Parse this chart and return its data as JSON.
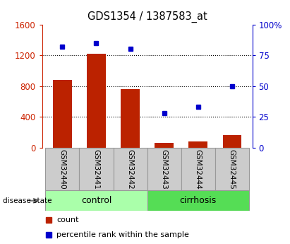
{
  "title": "GDS1354 / 1387583_at",
  "samples": [
    "GSM32440",
    "GSM32441",
    "GSM32442",
    "GSM32443",
    "GSM32444",
    "GSM32445"
  ],
  "counts": [
    880,
    1220,
    760,
    60,
    80,
    160
  ],
  "percentiles": [
    82,
    85,
    80,
    28,
    33,
    50
  ],
  "bar_color": "#bb2200",
  "dot_color": "#0000cc",
  "left_ylim": [
    0,
    1600
  ],
  "right_ylim": [
    0,
    100
  ],
  "left_yticks": [
    0,
    400,
    800,
    1200,
    1600
  ],
  "right_yticks": [
    0,
    25,
    50,
    75,
    100
  ],
  "left_yticklabels": [
    "0",
    "400",
    "800",
    "1200",
    "1600"
  ],
  "right_yticklabels": [
    "0",
    "25",
    "50",
    "75",
    "100%"
  ],
  "group_control_color": "#aaffaa",
  "group_cirrhosis_color": "#55dd55",
  "sample_box_color": "#cccccc",
  "sample_box_edge": "#999999",
  "background_color": "#ffffff",
  "tick_color_left": "#cc2200",
  "tick_color_right": "#0000cc",
  "grid_yticks": [
    400,
    800,
    1200
  ],
  "legend_count_label": "count",
  "legend_pct_label": "percentile rank within the sample",
  "disease_state_label": "disease state"
}
